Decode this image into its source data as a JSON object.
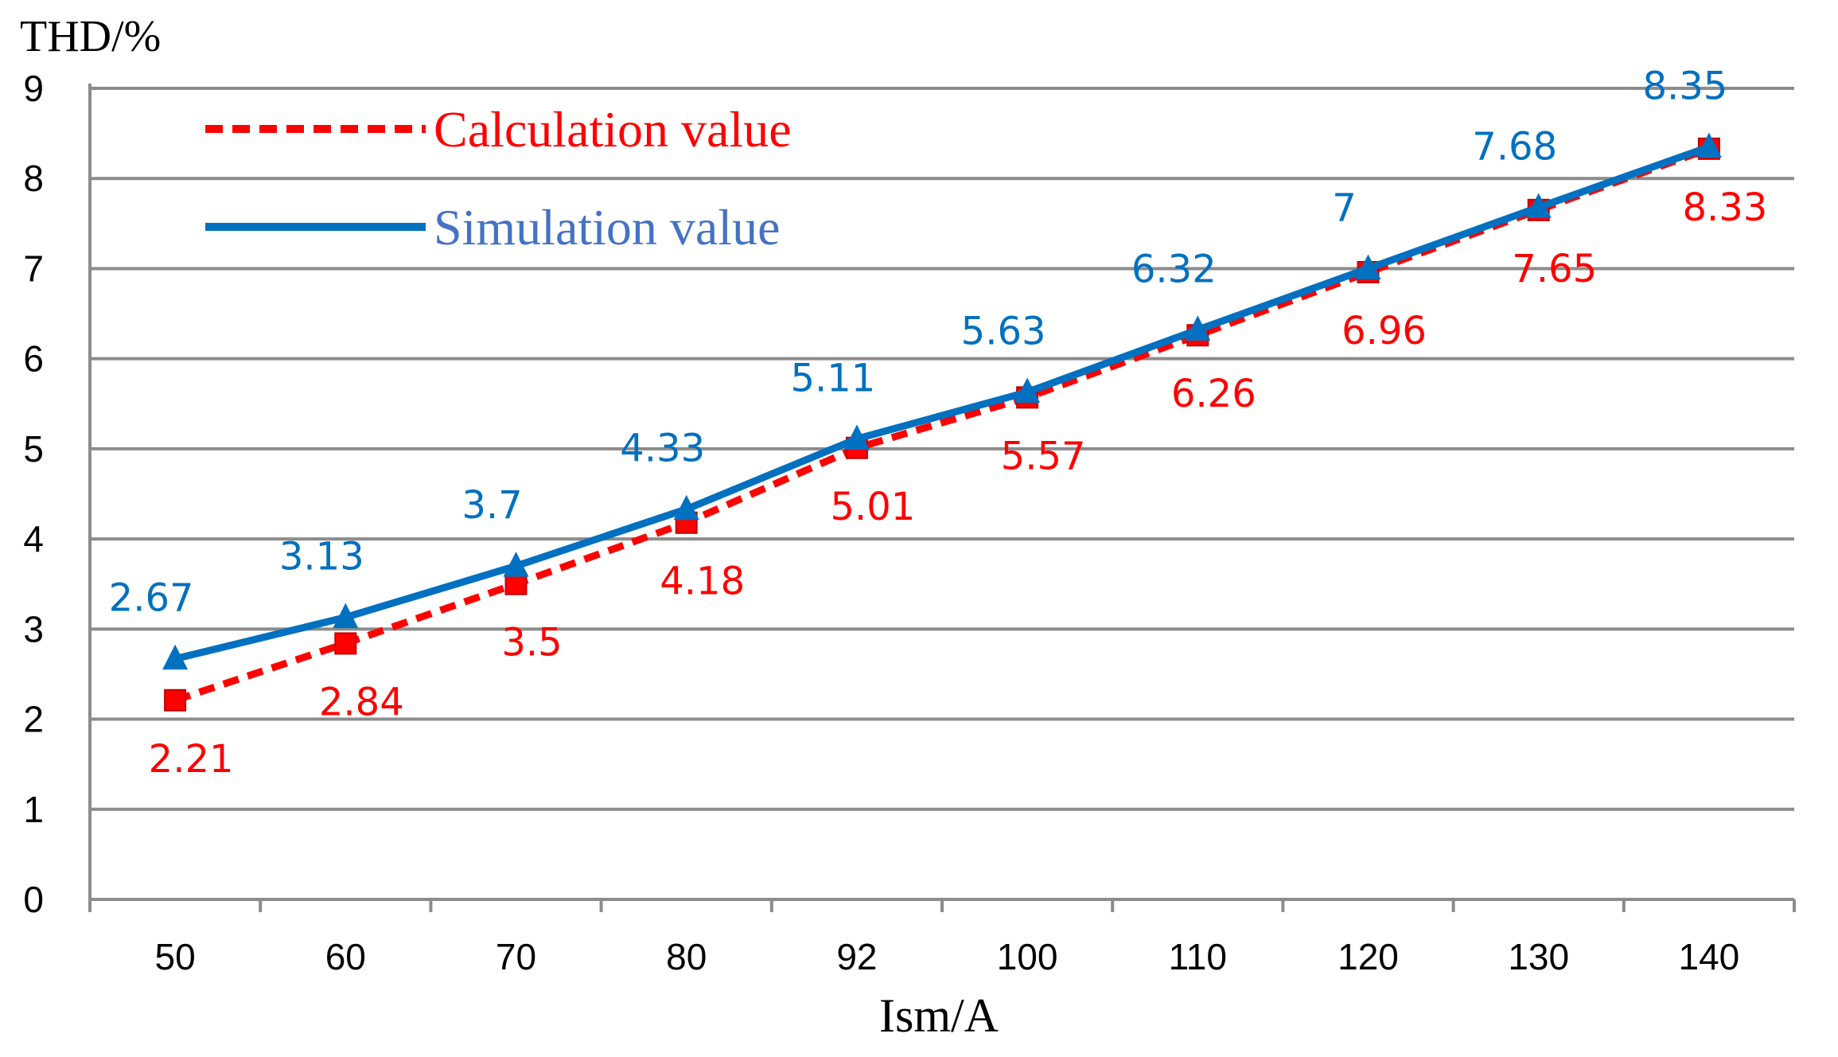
{
  "chart_data": {
    "type": "line",
    "title": "",
    "ylabel": "THD/%",
    "xlabel": "Ism/A",
    "categories": [
      "50",
      "60",
      "70",
      "80",
      "92",
      "100",
      "110",
      "120",
      "130",
      "140"
    ],
    "ylim": [
      0,
      9
    ],
    "yticks": [
      "0",
      "1",
      "2",
      "3",
      "4",
      "5",
      "6",
      "7",
      "8",
      "9"
    ],
    "grid": true,
    "legend_position": "top-left",
    "series": [
      {
        "name": "Calculation value",
        "values": [
          2.21,
          2.84,
          3.5,
          4.18,
          5.01,
          5.57,
          6.26,
          6.96,
          7.65,
          8.33
        ],
        "labels": [
          "2.21",
          "2.84",
          "3.5",
          "4.18",
          "5.01",
          "5.57",
          "6.26",
          "6.96",
          "7.65",
          "8.33"
        ],
        "color": "#FF0000",
        "label_color": "#FF0000",
        "legend_color": "#FF0000",
        "line_style": "dashed",
        "marker": "square"
      },
      {
        "name": "Simulation value",
        "values": [
          2.67,
          3.13,
          3.7,
          4.33,
          5.11,
          5.63,
          6.32,
          7,
          7.68,
          8.35
        ],
        "labels": [
          "2.67",
          "3.13",
          "3.7",
          "4.33",
          "5.11",
          "5.63",
          "6.32",
          "7",
          "7.68",
          "8.35"
        ],
        "color": "#0070C0",
        "label_color": "#0070C0",
        "legend_color": "#4472C4",
        "line_style": "solid",
        "marker": "triangle"
      }
    ]
  }
}
